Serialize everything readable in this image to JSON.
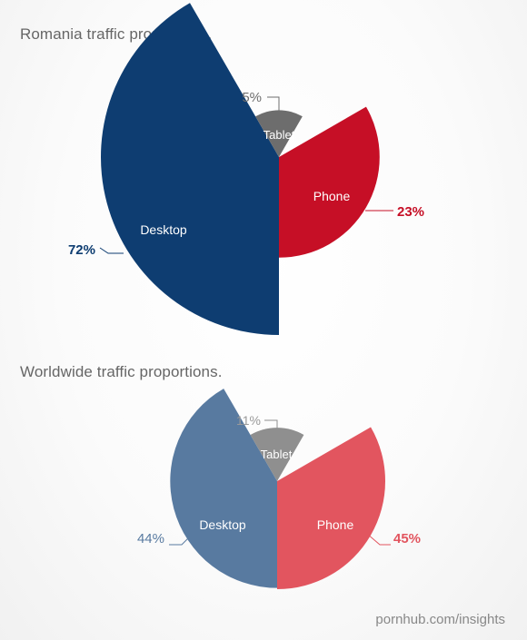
{
  "chart_data": [
    {
      "type": "pie",
      "variant": "polar-area",
      "title": "Romania traffic proportions.",
      "slices": [
        {
          "name": "Desktop",
          "value": 72,
          "label": "72%",
          "color": "#0e3d71"
        },
        {
          "name": "Phone",
          "value": 23,
          "label": "23%",
          "color": "#c60f26"
        },
        {
          "name": "Tablet",
          "value": 5,
          "label": "5%",
          "color": "#6d6d6d"
        }
      ]
    },
    {
      "type": "pie",
      "variant": "polar-area",
      "title": "Worldwide traffic proportions.",
      "slices": [
        {
          "name": "Desktop",
          "value": 44,
          "label": "44%",
          "color": "#587aa0"
        },
        {
          "name": "Phone",
          "value": 45,
          "label": "45%",
          "color": "#e2555f"
        },
        {
          "name": "Tablet",
          "value": 11,
          "label": "11%",
          "color": "#8f8f8f"
        }
      ]
    }
  ],
  "footer": {
    "source": "pornhub.com/insights"
  }
}
